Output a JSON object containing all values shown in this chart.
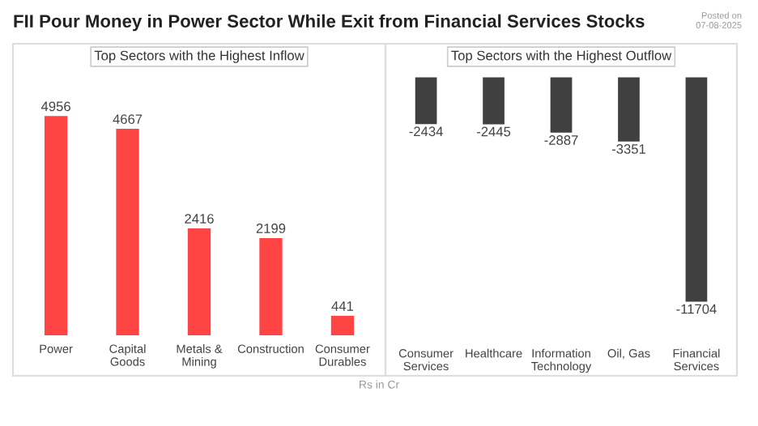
{
  "chart_data": [
    {
      "type": "bar",
      "title": "FII Pour Money in Power Sector While Exit from Financial Services Stocks",
      "subtitle": "Top Sectors with the Highest Inflow",
      "categories": [
        "Power",
        "Capital\nGoods",
        "Metals &\nMining",
        "Construction",
        "Consumer\nDurables"
      ],
      "series": [
        {
          "color": "#ff4444",
          "values": [
            4956,
            4667,
            2416,
            2199,
            441
          ]
        }
      ],
      "data_labels": true,
      "tick_labels": "x",
      "grid": false,
      "legend": false,
      "annotations": [
        "Posted on",
        "07-08-2025",
        "Rs in Cr"
      ]
    },
    {
      "type": "bar",
      "subtitle": "Top Sectors with the Highest Outflow",
      "categories": [
        "Consumer\nServices",
        "Healthcare",
        "Information\nTechnology",
        "Oil, Gas",
        "Financial\nServices"
      ],
      "series": [
        {
          "color": "#404040",
          "values": [
            -2434,
            -2445,
            -2887,
            -3351,
            -11704
          ]
        }
      ],
      "data_labels": true,
      "tick_labels": "x",
      "grid": false,
      "legend": false
    }
  ]
}
